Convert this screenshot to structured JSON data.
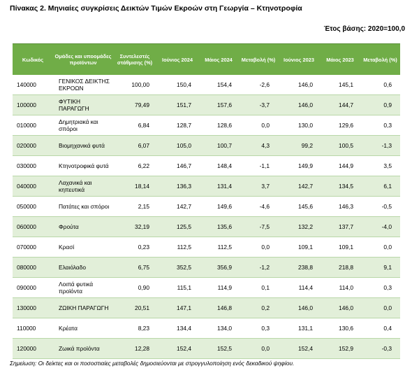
{
  "title": "Πίνακας 2. Μηνιαίες συγκρίσεις Δεικτών Τιμών Εκροών στη Γεωργία – Κτηνοτροφία",
  "base_year": "Έτος βάσης: 2020=100,0",
  "headers": [
    "Κωδικός",
    "Ομάδες και υποομάδες προϊόντων",
    "Συντελεστές στάθμισης (%)",
    "Ιούνιος 2024",
    "Μάιος 2024",
    "Μεταβολή (%)",
    "Ιούνιος 2023",
    "Μάιος 2023",
    "Μεταβολή (%)"
  ],
  "rows": [
    {
      "code": "140000",
      "name": "ΓΕΝΙΚΟΣ ΔΕΙΚΤΗΣ ΕΚΡΟΩΝ",
      "weight": "100,00",
      "jun24": "150,4",
      "may24": "154,4",
      "chg24": "-2,6",
      "jun23": "146,0",
      "may23": "145,1",
      "chg23": "0,6"
    },
    {
      "code": "100000",
      "name": "ΦΥΤΙΚΗ ΠΑΡΑΓΩΓΗ",
      "weight": "79,49",
      "jun24": "151,7",
      "may24": "157,6",
      "chg24": "-3,7",
      "jun23": "146,0",
      "may23": "144,7",
      "chg23": "0,9"
    },
    {
      "code": "010000",
      "name": "Δημητριακά και σπόροι",
      "weight": "6,84",
      "jun24": "128,7",
      "may24": "128,6",
      "chg24": "0,0",
      "jun23": "130,0",
      "may23": "129,6",
      "chg23": "0,3"
    },
    {
      "code": "020000",
      "name": "Βιομηχανικά φυτά",
      "weight": "6,07",
      "jun24": "105,0",
      "may24": "100,7",
      "chg24": "4,3",
      "jun23": "99,2",
      "may23": "100,5",
      "chg23": "-1,3"
    },
    {
      "code": "030000",
      "name": "Κτηνοτροφικά φυτά",
      "weight": "6,22",
      "jun24": "146,7",
      "may24": "148,4",
      "chg24": "-1,1",
      "jun23": "149,9",
      "may23": "144,9",
      "chg23": "3,5"
    },
    {
      "code": "040000",
      "name": "Λαχανικά και κηπευτικά",
      "weight": "18,14",
      "jun24": "136,3",
      "may24": "131,4",
      "chg24": "3,7",
      "jun23": "142,7",
      "may23": "134,5",
      "chg23": "6,1"
    },
    {
      "code": "050000",
      "name": "Πατάτες και σπόροι",
      "weight": "2,15",
      "jun24": "142,7",
      "may24": "149,6",
      "chg24": "-4,6",
      "jun23": "145,6",
      "may23": "146,3",
      "chg23": "-0,5"
    },
    {
      "code": "060000",
      "name": "Φρούτα",
      "weight": "32,19",
      "jun24": "125,5",
      "may24": "135,6",
      "chg24": "-7,5",
      "jun23": "132,2",
      "may23": "137,7",
      "chg23": "-4,0"
    },
    {
      "code": "070000",
      "name": "Κρασί",
      "weight": "0,23",
      "jun24": "112,5",
      "may24": "112,5",
      "chg24": "0,0",
      "jun23": "109,1",
      "may23": "109,1",
      "chg23": "0,0"
    },
    {
      "code": "080000",
      "name": "Ελαιόλαδο",
      "weight": "6,75",
      "jun24": "352,5",
      "may24": "356,9",
      "chg24": "-1,2",
      "jun23": "238,8",
      "may23": "218,8",
      "chg23": "9,1"
    },
    {
      "code": "090000",
      "name": "Λοιπά φυτικά προϊόντα",
      "weight": "0,90",
      "jun24": "115,1",
      "may24": "114,9",
      "chg24": "0,1",
      "jun23": "114,4",
      "may23": "114,0",
      "chg23": "0,3"
    },
    {
      "code": "130000",
      "name": "ΖΩΙΚΗ ΠΑΡΑΓΩΓΗ",
      "weight": "20,51",
      "jun24": "147,1",
      "may24": "146,8",
      "chg24": "0,2",
      "jun23": "146,0",
      "may23": "146,0",
      "chg23": "0,0"
    },
    {
      "code": "110000",
      "name": "Κρέατα",
      "weight": "8,23",
      "jun24": "134,4",
      "may24": "134,0",
      "chg24": "0,3",
      "jun23": "131,1",
      "may23": "130,6",
      "chg23": "0,4"
    },
    {
      "code": "120000",
      "name": "Ζωικά προϊόντα",
      "weight": "12,28",
      "jun24": "152,4",
      "may24": "152,5",
      "chg24": "0,0",
      "jun23": "152,4",
      "may23": "152,9",
      "chg23": "-0,3"
    }
  ],
  "note": "Σημείωση: Οι δείκτες και οι ποσοστιαίες μεταβολές δημοσιεύονται με στρογγυλοποίηση ενός δεκαδικού ψηφίου."
}
